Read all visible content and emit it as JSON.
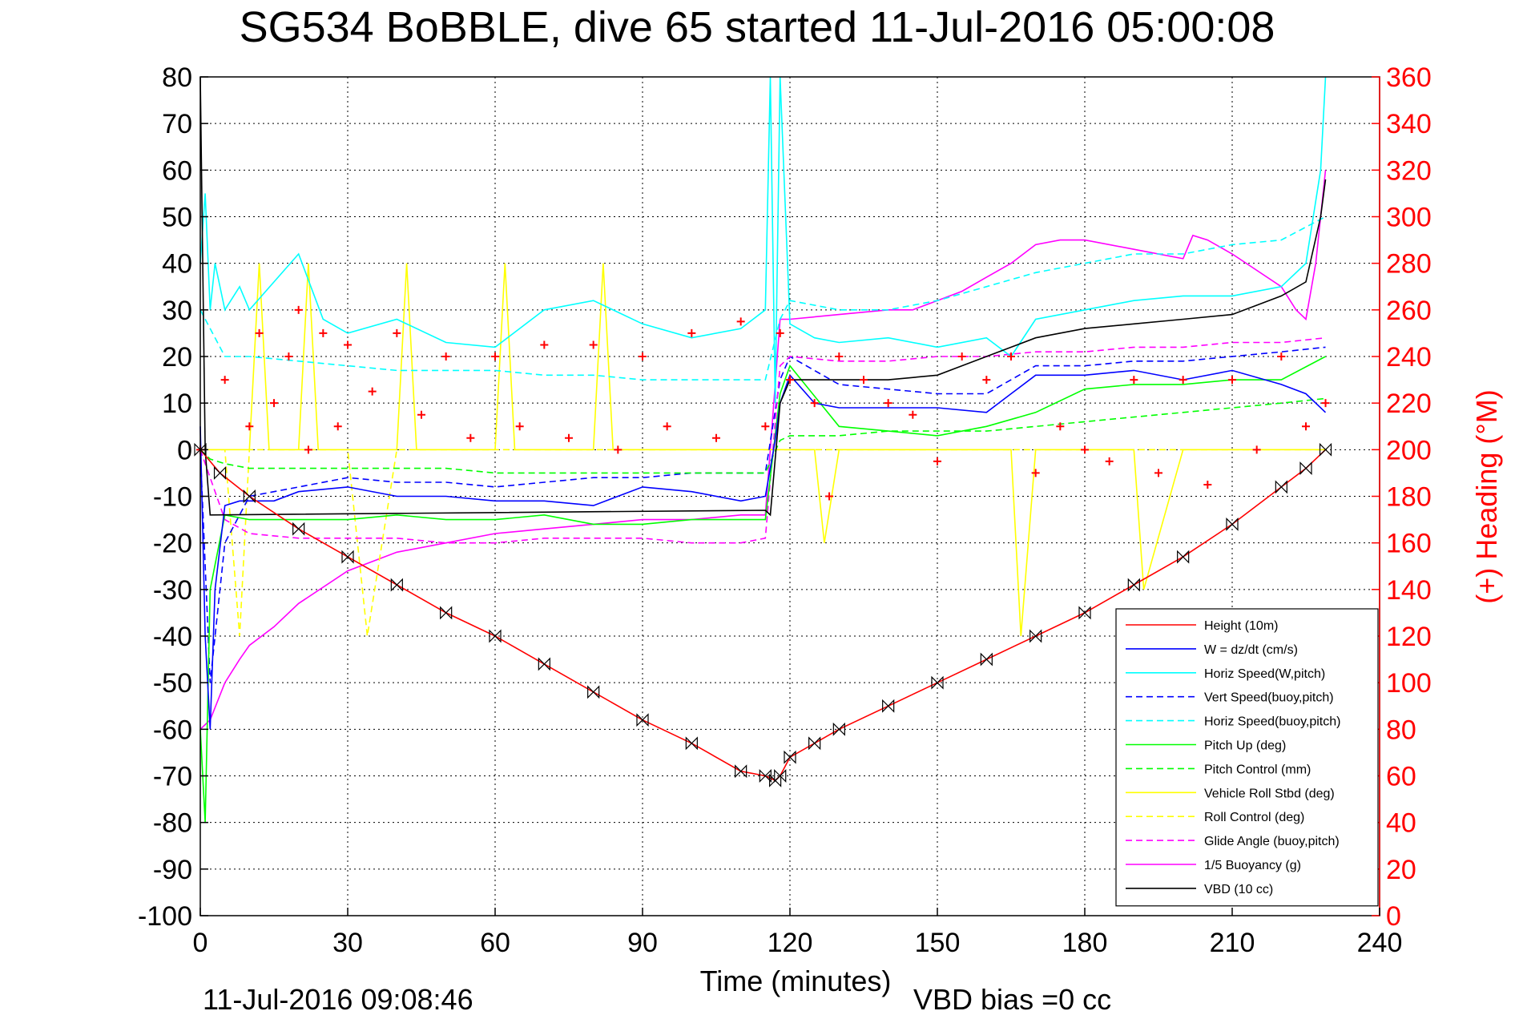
{
  "chart_data": {
    "type": "line",
    "title": "SG534 BoBBLE, dive 65 started 11-Jul-2016 05:00:08",
    "xlabel": "Time (minutes)",
    "ylabel_right": "(+) Heading (°M)",
    "footer_left": "11-Jul-2016 09:08:46",
    "footer_right": "VBD bias =0 cc",
    "xlim": [
      0,
      240
    ],
    "ylim": [
      -100,
      80
    ],
    "ylim_right": [
      0,
      360
    ],
    "x_ticks": [
      "0",
      "30",
      "60",
      "90",
      "120",
      "150",
      "180",
      "210",
      "240"
    ],
    "y_ticks": [
      "80",
      "70",
      "60",
      "50",
      "40",
      "30",
      "20",
      "10",
      "0",
      "-10",
      "-20",
      "-30",
      "-40",
      "-50",
      "-60",
      "-70",
      "-80",
      "-90",
      "-100"
    ],
    "y_ticks_right": [
      "360",
      "340",
      "320",
      "300",
      "280",
      "260",
      "240",
      "220",
      "200",
      "180",
      "160",
      "140",
      "120",
      "100",
      "80",
      "60",
      "40",
      "20",
      "0"
    ],
    "grid": true,
    "legend_position": "bottom-right",
    "colors": {
      "height": "#ff0000",
      "w": "#0000ff",
      "horiz_speed": "#00ffff",
      "pitch": "#00ff00",
      "roll": "#ffff00",
      "glide": "#ff00ff",
      "vbd": "#000000",
      "heading": "#ff0000"
    },
    "series": [
      {
        "name": "Height (10m)",
        "style": "solid",
        "color": "#ff0000",
        "x": [
          0,
          4,
          10,
          20,
          30,
          40,
          50,
          60,
          70,
          80,
          90,
          100,
          110,
          115,
          117,
          118,
          120,
          125,
          130,
          140,
          150,
          160,
          170,
          180,
          190,
          200,
          210,
          220,
          225,
          229
        ],
        "y": [
          0,
          -5,
          -10,
          -17,
          -23,
          -29,
          -35,
          -40,
          -46,
          -52,
          -58,
          -63,
          -69,
          -70,
          -71,
          -70,
          -66,
          -63,
          -60,
          -55,
          -50,
          -45,
          -40,
          -35,
          -29,
          -23,
          -16,
          -8,
          -4,
          0
        ]
      },
      {
        "name": "W = dz/dt (cm/s)",
        "style": "solid",
        "color": "#0000ff",
        "x": [
          0,
          1,
          2,
          3,
          5,
          8,
          15,
          20,
          30,
          40,
          50,
          60,
          70,
          80,
          90,
          100,
          110,
          115,
          117,
          118,
          120,
          125,
          130,
          140,
          150,
          160,
          165,
          170,
          180,
          190,
          200,
          210,
          220,
          225,
          229
        ],
        "y": [
          5,
          -40,
          -60,
          -30,
          -12,
          -11,
          -11,
          -9,
          -8,
          -10,
          -10,
          -11,
          -11,
          -12,
          -8,
          -9,
          -11,
          -10,
          2,
          10,
          16,
          10,
          9,
          9,
          9,
          8,
          12,
          16,
          16,
          17,
          15,
          17,
          14,
          12,
          8
        ]
      },
      {
        "name": "Horiz Speed(W,pitch)",
        "style": "solid",
        "color": "#00ffff",
        "x": [
          0,
          1,
          2,
          3,
          5,
          8,
          10,
          15,
          20,
          25,
          30,
          40,
          50,
          60,
          70,
          80,
          90,
          100,
          110,
          115,
          116,
          117,
          118,
          120,
          125,
          130,
          140,
          150,
          160,
          165,
          170,
          180,
          190,
          200,
          210,
          220,
          225,
          228,
          229
        ],
        "y": [
          40,
          55,
          30,
          40,
          30,
          35,
          30,
          36,
          42,
          28,
          25,
          28,
          23,
          22,
          30,
          32,
          27,
          24,
          26,
          30,
          80,
          10,
          80,
          27,
          24,
          23,
          24,
          22,
          24,
          20,
          28,
          30,
          32,
          33,
          33,
          35,
          40,
          60,
          80
        ]
      },
      {
        "name": "Vert Speed(buoy,pitch)",
        "style": "dashed",
        "color": "#0000ff",
        "x": [
          0,
          2,
          5,
          10,
          20,
          30,
          40,
          50,
          60,
          70,
          80,
          90,
          100,
          110,
          115,
          118,
          120,
          130,
          140,
          150,
          160,
          170,
          180,
          190,
          200,
          210,
          220,
          229
        ],
        "y": [
          0,
          -50,
          -20,
          -10,
          -8,
          -6,
          -7,
          -7,
          -8,
          -7,
          -6,
          -6,
          -5,
          -5,
          -5,
          15,
          20,
          14,
          13,
          12,
          12,
          18,
          18,
          19,
          19,
          20,
          21,
          22
        ]
      },
      {
        "name": "Horiz Speed(buoy,pitch)",
        "style": "dashed",
        "color": "#00ffff",
        "x": [
          0,
          5,
          10,
          20,
          30,
          40,
          50,
          60,
          70,
          80,
          90,
          100,
          110,
          115,
          118,
          120,
          130,
          140,
          150,
          160,
          170,
          180,
          190,
          200,
          210,
          220,
          229
        ],
        "y": [
          30,
          20,
          20,
          19,
          18,
          17,
          17,
          17,
          16,
          16,
          15,
          15,
          15,
          15,
          28,
          32,
          30,
          30,
          32,
          35,
          38,
          40,
          42,
          42,
          44,
          45,
          50
        ]
      },
      {
        "name": "Pitch Up (deg)",
        "style": "solid",
        "color": "#00ff00",
        "x": [
          0,
          1,
          2,
          5,
          10,
          20,
          30,
          40,
          50,
          60,
          70,
          80,
          90,
          100,
          110,
          115,
          118,
          120,
          130,
          140,
          150,
          160,
          170,
          180,
          190,
          200,
          210,
          220,
          229
        ],
        "y": [
          -60,
          -80,
          -30,
          -14,
          -15,
          -15,
          -15,
          -14,
          -15,
          -15,
          -14,
          -16,
          -16,
          -15,
          -15,
          -15,
          12,
          18,
          5,
          4,
          3,
          5,
          8,
          13,
          14,
          14,
          15,
          15,
          20
        ]
      },
      {
        "name": "Pitch Control (mm)",
        "style": "dashed",
        "color": "#00ff00",
        "x": [
          0,
          2,
          5,
          10,
          20,
          30,
          40,
          50,
          60,
          70,
          80,
          90,
          100,
          110,
          115,
          118,
          120,
          130,
          140,
          150,
          160,
          170,
          180,
          190,
          200,
          210,
          220,
          229
        ],
        "y": [
          0,
          -2,
          -3,
          -4,
          -4,
          -4,
          -4,
          -4,
          -5,
          -5,
          -5,
          -5,
          -5,
          -5,
          -5,
          2,
          3,
          3,
          4,
          4,
          4,
          5,
          6,
          7,
          8,
          9,
          10,
          11
        ]
      },
      {
        "name": "Vehicle Roll Stbd (deg)",
        "style": "solid",
        "color": "#ffff00",
        "x": [
          0,
          5,
          10,
          12,
          14,
          20,
          22,
          24,
          30,
          40,
          42,
          44,
          50,
          60,
          62,
          64,
          70,
          80,
          82,
          84,
          90,
          100,
          110,
          115,
          118,
          120,
          125,
          127,
          130,
          140,
          150,
          160,
          165,
          167,
          170,
          180,
          190,
          192,
          200,
          210,
          220,
          229
        ],
        "y": [
          0,
          0,
          0,
          40,
          0,
          0,
          40,
          0,
          0,
          0,
          40,
          0,
          0,
          0,
          40,
          0,
          0,
          0,
          40,
          0,
          0,
          0,
          0,
          0,
          0,
          0,
          0,
          -20,
          0,
          0,
          0,
          0,
          0,
          -40,
          0,
          0,
          0,
          -30,
          0,
          0,
          0,
          0
        ]
      },
      {
        "name": "Roll Control (deg)",
        "style": "dashed",
        "color": "#ffff00",
        "x": [
          0,
          5,
          8,
          10,
          20,
          30,
          34,
          40,
          50,
          60,
          70,
          80,
          90,
          100,
          110,
          115,
          118,
          120,
          130,
          140,
          150,
          160,
          170,
          180,
          190,
          200,
          210,
          220,
          229
        ],
        "y": [
          0,
          0,
          -40,
          0,
          0,
          0,
          -40,
          0,
          0,
          0,
          0,
          0,
          0,
          0,
          0,
          0,
          0,
          0,
          0,
          0,
          0,
          0,
          0,
          0,
          0,
          0,
          0,
          0,
          0
        ]
      },
      {
        "name": "Glide Angle (buoy,pitch)",
        "style": "dashed",
        "color": "#ff00ff",
        "x": [
          0,
          5,
          10,
          20,
          30,
          40,
          50,
          60,
          70,
          80,
          90,
          100,
          110,
          115,
          118,
          120,
          130,
          140,
          150,
          160,
          170,
          180,
          190,
          200,
          210,
          220,
          229
        ],
        "y": [
          0,
          -15,
          -18,
          -19,
          -19,
          -19,
          -20,
          -20,
          -19,
          -19,
          -19,
          -20,
          -20,
          -19,
          18,
          20,
          19,
          19,
          20,
          20,
          21,
          21,
          22,
          22,
          23,
          23,
          24
        ]
      },
      {
        "name": "1/5 Buoyancy (g)",
        "style": "solid",
        "color": "#ff00ff",
        "x": [
          0,
          2,
          5,
          8,
          10,
          15,
          20,
          30,
          40,
          50,
          60,
          70,
          80,
          90,
          100,
          110,
          115,
          118,
          120,
          130,
          140,
          145,
          150,
          155,
          160,
          165,
          170,
          175,
          180,
          190,
          200,
          202,
          205,
          210,
          220,
          223,
          225,
          227,
          229
        ],
        "y": [
          -60,
          -58,
          -50,
          -45,
          -42,
          -38,
          -33,
          -26,
          -22,
          -20,
          -18,
          -17,
          -16,
          -15,
          -15,
          -14,
          -14,
          28,
          28,
          29,
          30,
          30,
          32,
          34,
          37,
          40,
          44,
          45,
          45,
          43,
          41,
          46,
          45,
          42,
          35,
          30,
          28,
          40,
          60
        ]
      },
      {
        "name": "VBD (10 cc)",
        "style": "solid",
        "color": "#000000",
        "x": [
          0,
          1,
          2,
          115,
          116,
          118,
          120,
          130,
          140,
          150,
          155,
          160,
          165,
          170,
          180,
          190,
          200,
          210,
          215,
          220,
          225,
          228,
          229
        ],
        "y": [
          80,
          0,
          -14,
          -13,
          -14,
          10,
          15,
          15,
          15,
          16,
          18,
          20,
          22,
          24,
          26,
          27,
          28,
          29,
          31,
          33,
          36,
          50,
          58
        ]
      },
      {
        "name": "",
        "style": "markers",
        "color": "#ff0000",
        "axis": "right",
        "x": [
          0,
          5,
          10,
          12,
          15,
          18,
          20,
          22,
          25,
          28,
          30,
          35,
          40,
          45,
          50,
          55,
          60,
          65,
          70,
          75,
          80,
          85,
          90,
          95,
          100,
          105,
          110,
          115,
          118,
          120,
          125,
          128,
          130,
          135,
          140,
          145,
          150,
          155,
          160,
          165,
          170,
          175,
          180,
          185,
          190,
          195,
          200,
          205,
          210,
          215,
          220,
          225,
          229
        ],
        "y": [
          200,
          230,
          210,
          250,
          220,
          240,
          260,
          200,
          250,
          210,
          245,
          225,
          250,
          215,
          240,
          205,
          240,
          210,
          245,
          205,
          245,
          200,
          240,
          210,
          250,
          205,
          255,
          210,
          250,
          230,
          220,
          180,
          240,
          230,
          220,
          215,
          195,
          240,
          230,
          240,
          190,
          210,
          200,
          195,
          230,
          190,
          230,
          185,
          230,
          200,
          240,
          210,
          220
        ]
      }
    ]
  }
}
